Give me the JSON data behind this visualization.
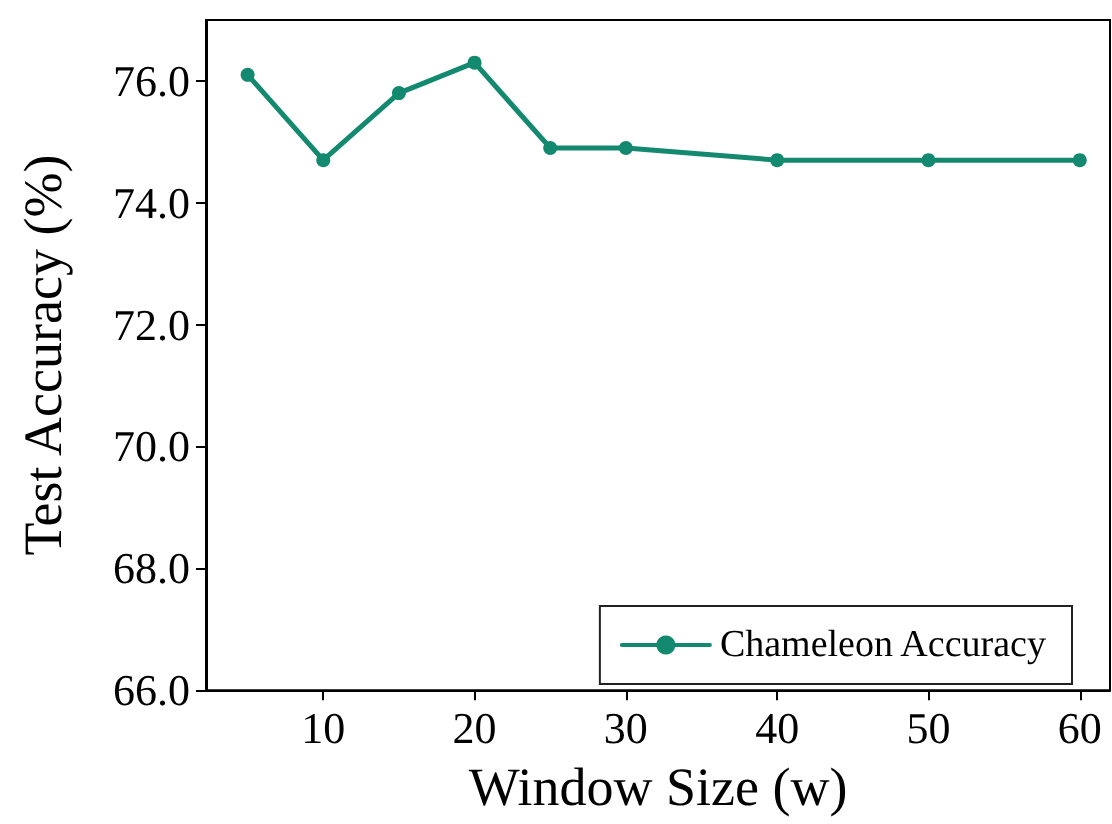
{
  "chart_data": {
    "type": "line",
    "xlabel": "Window Size (w)",
    "ylabel": "Test Accuracy (%)",
    "x": [
      5,
      10,
      15,
      20,
      25,
      30,
      40,
      50,
      60
    ],
    "series": [
      {
        "name": "Chameleon Accuracy",
        "color": "#138a6f",
        "values": [
          76.1,
          74.7,
          75.8,
          76.3,
          74.9,
          74.9,
          74.7,
          74.7,
          74.7
        ]
      }
    ],
    "xlim": [
      2.25,
      62
    ],
    "xticks": [
      10,
      20,
      30,
      40,
      50,
      60
    ],
    "ylim": [
      66,
      77
    ],
    "yticks": [
      {
        "value": 66,
        "label": "66.0"
      },
      {
        "value": 68,
        "label": "68.0"
      },
      {
        "value": 70,
        "label": "70.0"
      },
      {
        "value": 72,
        "label": "72.0"
      },
      {
        "value": 74,
        "label": "74.0"
      },
      {
        "value": 76,
        "label": "76.0"
      }
    ],
    "marker": "circle",
    "line_style": "solid",
    "legend": "bottom right",
    "grid": false
  }
}
